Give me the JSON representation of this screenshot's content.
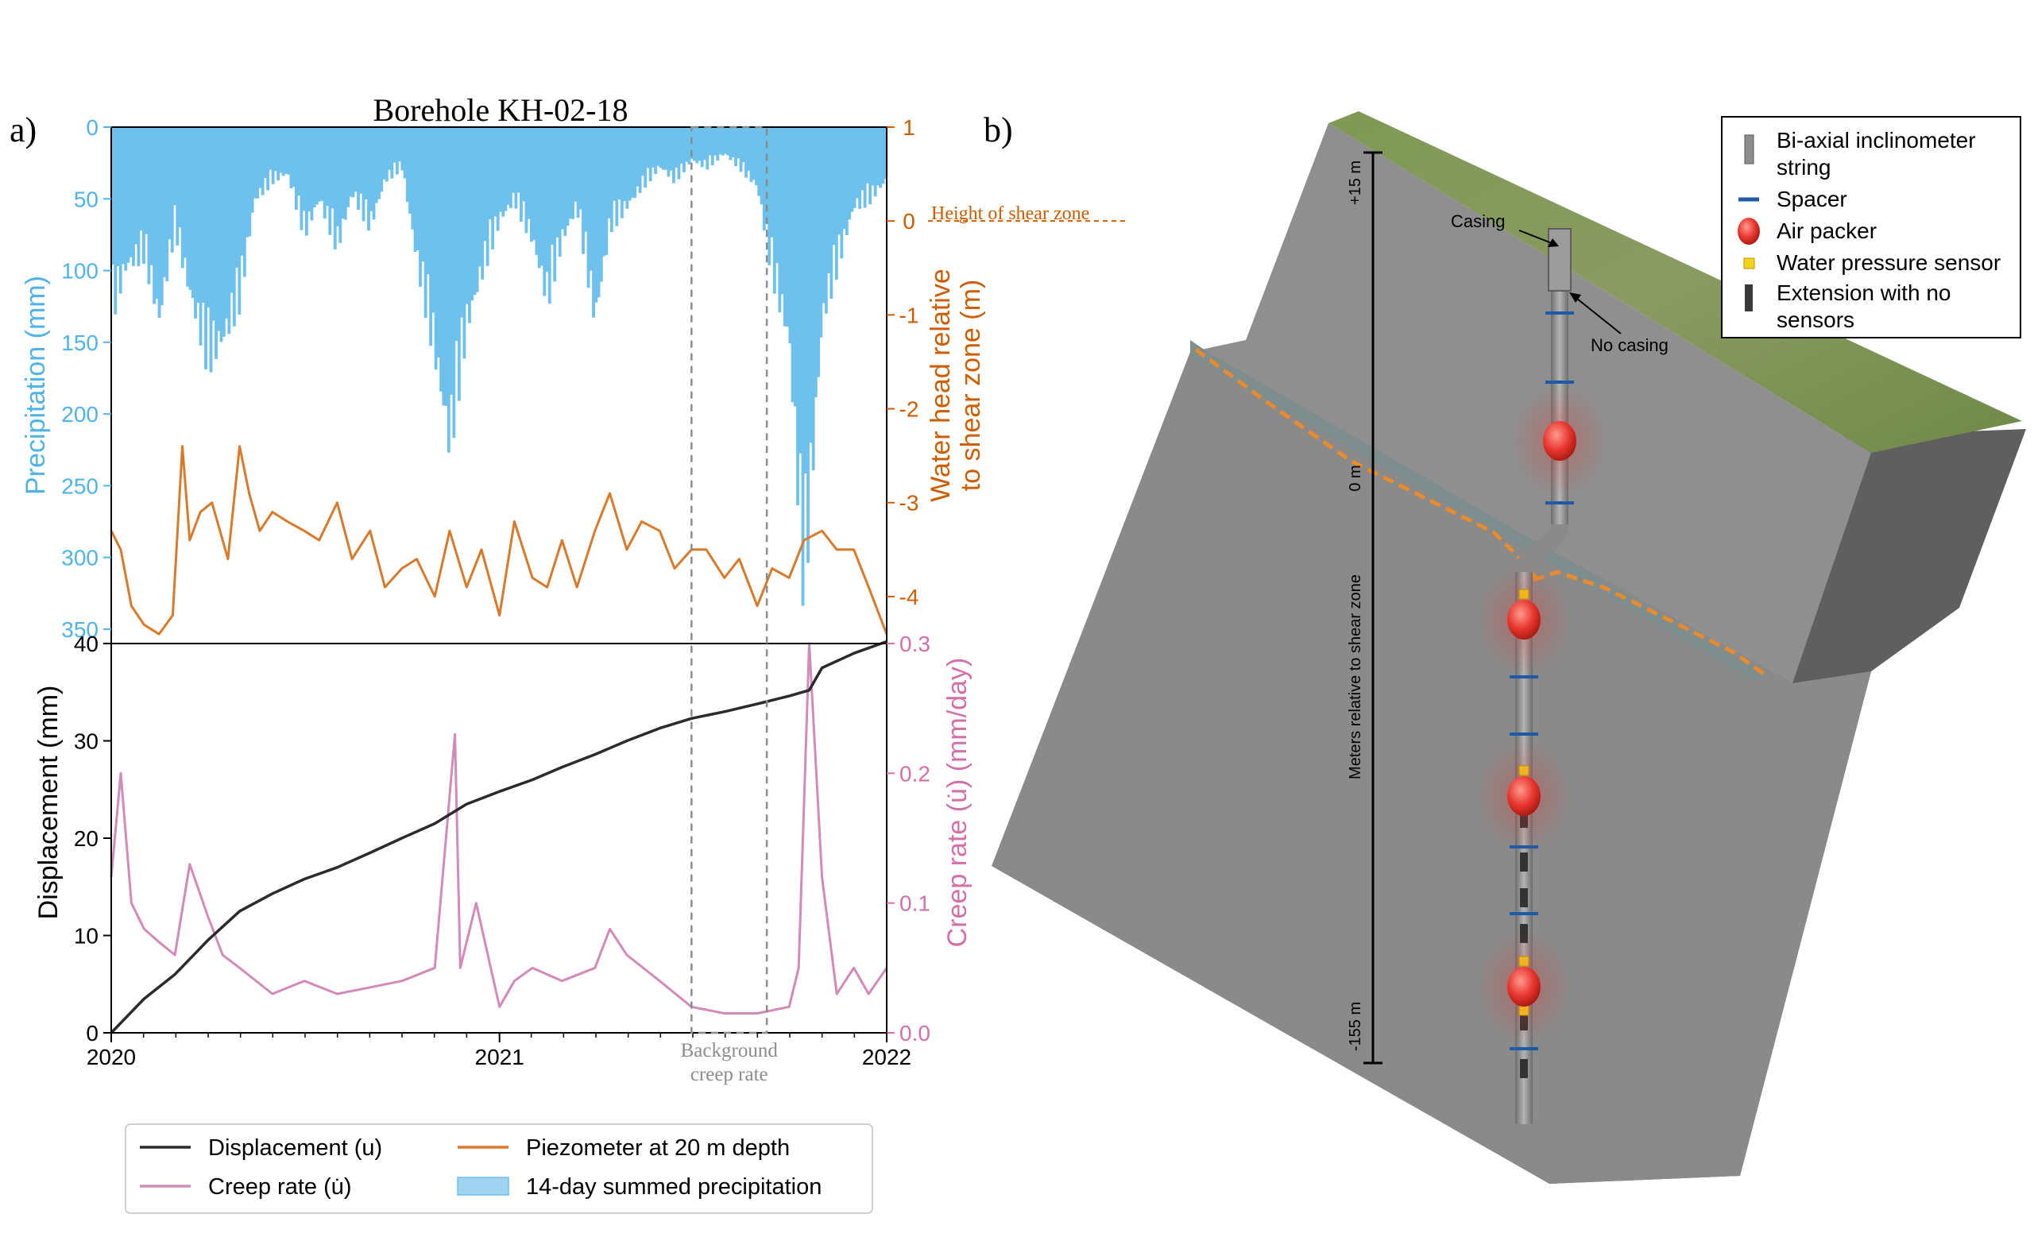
{
  "figure": {
    "panel_a_label": "a)",
    "panel_b_label": "b)"
  },
  "chart_data": {
    "type": "line",
    "title": "Borehole KH-02-18",
    "x_axis": {
      "range": [
        "2020-01-01",
        "2022-01-01"
      ],
      "ticks": [
        "2020",
        "2021",
        "2022"
      ]
    },
    "precipitation_axis": {
      "label": "Precipitation (mm)",
      "range": [
        0,
        360
      ],
      "inverted": true,
      "ticks": [
        "0",
        "50",
        "100",
        "150",
        "200",
        "250",
        "300",
        "350"
      ]
    },
    "water_head_axis": {
      "label": "Water head relative\nto shear zone (m)",
      "range": [
        -4.5,
        1
      ],
      "ticks": [
        "1",
        "0",
        "-1",
        "-2",
        "-3",
        "-4"
      ],
      "annotation": "Height of shear zone",
      "reference_value": 0
    },
    "displacement_axis": {
      "label": "Displacement (mm)",
      "range": [
        0,
        40
      ],
      "ticks": [
        "0",
        "10",
        "20",
        "30",
        "40"
      ]
    },
    "creep_axis": {
      "label": "Creep rate (u̇) (mm/day)",
      "range": [
        0,
        0.3
      ],
      "ticks": [
        "0.0",
        "0.1",
        "0.2",
        "0.3"
      ]
    },
    "background_window": {
      "start": "2021-07-01",
      "end": "2021-09-10",
      "label": "Background\ncreep rate"
    },
    "legend": {
      "position": "bottom",
      "items": [
        {
          "label": "Displacement (u)",
          "color": "#2b2b2b",
          "kind": "line"
        },
        {
          "label": "Creep rate (u̇)",
          "color": "#d28ab8",
          "kind": "line"
        },
        {
          "label": "Piezometer at 20 m depth",
          "color": "#d97a2b",
          "kind": "line"
        },
        {
          "label": "14-day summed precipitation",
          "color": "#9fd3f0",
          "kind": "patch"
        }
      ]
    },
    "colors": {
      "precipitation": "#6ec1ec",
      "water_head": "#d97a2b",
      "creep": "#d28ab8",
      "displacement": "#2b2b2b",
      "precip_axis": "#4fb3e8",
      "head_axis": "#cc5d00",
      "creep_axis": "#d470a8"
    },
    "series": [
      {
        "name": "14-day summed precipitation",
        "axis": "precipitation",
        "x": [
          "2020-01-01",
          "2020-01-15",
          "2020-02-01",
          "2020-02-15",
          "2020-03-01",
          "2020-03-15",
          "2020-04-01",
          "2020-04-15",
          "2020-05-01",
          "2020-05-15",
          "2020-06-01",
          "2020-06-15",
          "2020-07-01",
          "2020-07-15",
          "2020-08-01",
          "2020-08-15",
          "2020-09-01",
          "2020-09-15",
          "2020-10-01",
          "2020-10-15",
          "2020-11-01",
          "2020-11-15",
          "2020-12-01",
          "2020-12-15",
          "2021-01-01",
          "2021-01-15",
          "2021-02-01",
          "2021-02-15",
          "2021-03-01",
          "2021-03-15",
          "2021-04-01",
          "2021-04-15",
          "2021-05-01",
          "2021-05-15",
          "2021-06-01",
          "2021-06-15",
          "2021-07-01",
          "2021-07-15",
          "2021-08-01",
          "2021-08-15",
          "2021-09-01",
          "2021-09-15",
          "2021-10-01",
          "2021-10-15",
          "2021-11-01",
          "2021-11-15",
          "2021-12-01",
          "2021-12-15",
          "2022-01-01"
        ],
        "values": [
          140,
          105,
          95,
          145,
          75,
          125,
          175,
          160,
          130,
          55,
          40,
          35,
          80,
          55,
          90,
          50,
          75,
          40,
          30,
          100,
          170,
          240,
          150,
          110,
          70,
          55,
          85,
          130,
          85,
          60,
          145,
          75,
          60,
          45,
          30,
          40,
          25,
          30,
          20,
          30,
          45,
          110,
          160,
          350,
          145,
          105,
          60,
          55,
          40
        ]
      },
      {
        "name": "Piezometer at 20 m depth",
        "axis": "water_head",
        "x": [
          "2020-01-01",
          "2020-01-10",
          "2020-01-20",
          "2020-02-01",
          "2020-02-15",
          "2020-02-28",
          "2020-03-08",
          "2020-03-15",
          "2020-03-25",
          "2020-04-05",
          "2020-04-20",
          "2020-05-01",
          "2020-05-10",
          "2020-05-20",
          "2020-06-01",
          "2020-06-15",
          "2020-07-01",
          "2020-07-15",
          "2020-08-01",
          "2020-08-15",
          "2020-09-01",
          "2020-09-15",
          "2020-10-01",
          "2020-10-15",
          "2020-11-01",
          "2020-11-15",
          "2020-12-01",
          "2020-12-15",
          "2021-01-01",
          "2021-01-15",
          "2021-02-01",
          "2021-02-15",
          "2021-03-01",
          "2021-03-15",
          "2021-04-01",
          "2021-04-15",
          "2021-05-01",
          "2021-05-15",
          "2021-06-01",
          "2021-06-15",
          "2021-07-01",
          "2021-07-15",
          "2021-08-01",
          "2021-08-15",
          "2021-09-01",
          "2021-09-15",
          "2021-10-01",
          "2021-10-15",
          "2021-11-01",
          "2021-11-15",
          "2021-12-01",
          "2021-12-15",
          "2022-01-01"
        ],
        "values": [
          -3.3,
          -3.5,
          -4.1,
          -4.3,
          -4.4,
          -4.2,
          -2.4,
          -3.4,
          -3.1,
          -3.0,
          -3.6,
          -2.4,
          -2.9,
          -3.3,
          -3.1,
          -3.2,
          -3.3,
          -3.4,
          -3.0,
          -3.6,
          -3.3,
          -3.9,
          -3.7,
          -3.6,
          -4.0,
          -3.3,
          -3.9,
          -3.5,
          -4.2,
          -3.2,
          -3.8,
          -3.9,
          -3.4,
          -3.9,
          -3.3,
          -2.9,
          -3.5,
          -3.2,
          -3.3,
          -3.7,
          -3.5,
          -3.5,
          -3.8,
          -3.6,
          -4.1,
          -3.7,
          -3.8,
          -3.4,
          -3.3,
          -3.5,
          -3.5,
          -3.9,
          -4.4
        ]
      },
      {
        "name": "Displacement (u)",
        "axis": "displacement",
        "x": [
          "2020-01-01",
          "2020-02-01",
          "2020-03-01",
          "2020-04-01",
          "2020-05-01",
          "2020-06-01",
          "2020-07-01",
          "2020-08-01",
          "2020-09-01",
          "2020-10-01",
          "2020-11-01",
          "2020-12-01",
          "2021-01-01",
          "2021-02-01",
          "2021-03-01",
          "2021-04-01",
          "2021-05-01",
          "2021-06-01",
          "2021-07-01",
          "2021-08-01",
          "2021-09-01",
          "2021-10-01",
          "2021-10-20",
          "2021-11-01",
          "2021-12-01",
          "2022-01-01"
        ],
        "values": [
          0,
          3.5,
          6.0,
          9.5,
          12.5,
          14.3,
          15.8,
          17.0,
          18.5,
          20.0,
          21.5,
          23.5,
          24.8,
          26.0,
          27.3,
          28.6,
          30.0,
          31.3,
          32.3,
          33.0,
          33.8,
          34.6,
          35.2,
          37.5,
          39.0,
          40.2
        ]
      },
      {
        "name": "Creep rate (u̇)",
        "axis": "creep",
        "x": [
          "2020-01-01",
          "2020-01-10",
          "2020-01-20",
          "2020-02-01",
          "2020-02-15",
          "2020-03-01",
          "2020-03-15",
          "2020-04-01",
          "2020-04-15",
          "2020-05-01",
          "2020-06-01",
          "2020-07-01",
          "2020-08-01",
          "2020-09-01",
          "2020-10-01",
          "2020-11-01",
          "2020-11-20",
          "2020-11-25",
          "2020-12-10",
          "2021-01-01",
          "2021-01-15",
          "2021-02-01",
          "2021-03-01",
          "2021-04-01",
          "2021-04-15",
          "2021-05-01",
          "2021-06-01",
          "2021-07-01",
          "2021-08-01",
          "2021-09-01",
          "2021-10-01",
          "2021-10-10",
          "2021-10-20",
          "2021-11-01",
          "2021-11-15",
          "2021-12-01",
          "2021-12-15",
          "2022-01-01"
        ],
        "values": [
          0.12,
          0.2,
          0.1,
          0.08,
          0.07,
          0.06,
          0.13,
          0.09,
          0.06,
          0.05,
          0.03,
          0.04,
          0.03,
          0.035,
          0.04,
          0.05,
          0.23,
          0.05,
          0.1,
          0.02,
          0.04,
          0.05,
          0.04,
          0.05,
          0.08,
          0.06,
          0.04,
          0.02,
          0.015,
          0.015,
          0.02,
          0.05,
          0.3,
          0.12,
          0.03,
          0.05,
          0.03,
          0.05
        ]
      }
    ]
  },
  "diagram": {
    "scale_label": "Meters relative to shear zone",
    "scale_ticks": [
      "+15 m",
      "0 m",
      "-155 m"
    ],
    "casing_label": "Casing",
    "no_casing_label": "No casing",
    "legend": [
      {
        "label": "Bi-axial inclinometer\nstring",
        "symbol": "inclinometer"
      },
      {
        "label": "Spacer",
        "symbol": "spacer"
      },
      {
        "label": "Air packer",
        "symbol": "packer"
      },
      {
        "label": "Water pressure sensor",
        "symbol": "pressure"
      },
      {
        "label": "Extension with no\nsensors",
        "symbol": "extension"
      }
    ],
    "colors": {
      "block_front": "#8c8c8c",
      "block_side": "#666666",
      "grass": "#86985a",
      "shear_zone": "#e88a2e",
      "spacer": "#1f5aa6",
      "packer": "#e8372f",
      "pressure_sensor": "#f2d21b"
    }
  }
}
